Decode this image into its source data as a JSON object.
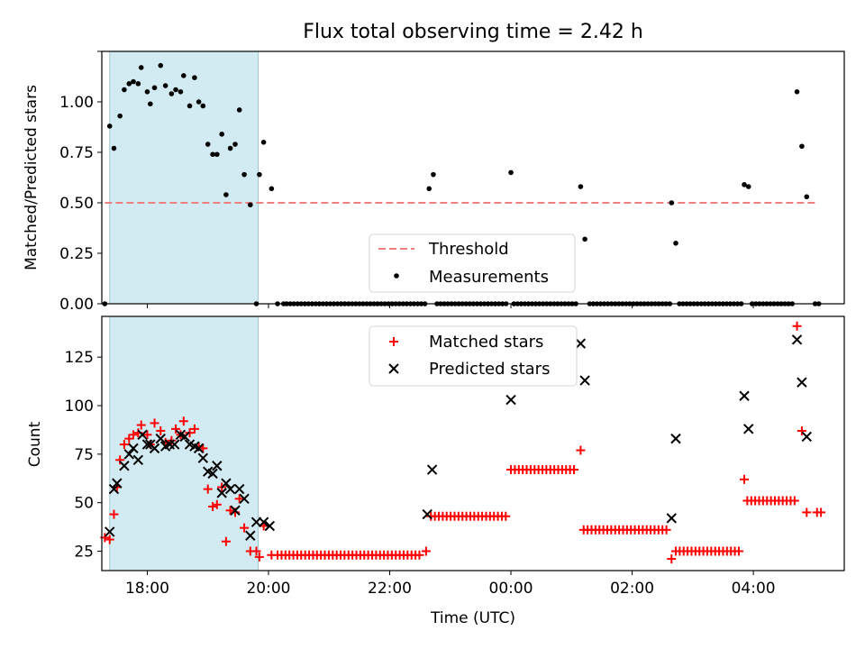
{
  "chart_data": [
    {
      "type": "scatter",
      "title": "Flux total observing time = 2.42 h",
      "xlabel": "",
      "ylabel": "Matched/Predicted stars",
      "xlim": [
        -0.75,
        11.5
      ],
      "ylim": [
        0,
        1.25
      ],
      "yticks": [
        0.0,
        0.25,
        0.5,
        0.75,
        1.0,
        1.25
      ],
      "ytick_labels": [
        "0.00",
        "0.25",
        "0.50",
        "0.75",
        "1.00",
        ""
      ],
      "xticks": [
        0,
        2,
        4,
        6,
        8,
        10
      ],
      "xtick_labels": [
        "",
        "",
        "",
        "",
        "",
        ""
      ],
      "shaded_span": {
        "x0": -0.62,
        "x1": 1.83,
        "color": "#add8e6"
      },
      "threshold": {
        "name": "Threshold",
        "y": 0.5,
        "x0": -0.7,
        "x1": 11.05,
        "color": "#f07f7f"
      },
      "legend": {
        "position": "lower-center",
        "entries": [
          "Threshold",
          "Measurements"
        ]
      },
      "series": [
        {
          "name": "Measurements",
          "marker": "dot",
          "color": "#000000",
          "x": [
            -0.7,
            -0.62,
            -0.55,
            -0.45,
            -0.38,
            -0.3,
            -0.23,
            -0.15,
            -0.1,
            0.0,
            0.05,
            0.12,
            0.22,
            0.3,
            0.4,
            0.47,
            0.55,
            0.6,
            0.7,
            0.78,
            0.85,
            0.92,
            1.0,
            1.08,
            1.15,
            1.23,
            1.3,
            1.37,
            1.45,
            1.52,
            1.6,
            1.7,
            1.8,
            1.85,
            1.92,
            2.05,
            2.15,
            2.25
          ],
          "y": [
            0.0,
            0.88,
            0.77,
            0.93,
            1.06,
            1.09,
            1.1,
            1.09,
            1.17,
            1.05,
            0.99,
            1.07,
            1.18,
            1.08,
            1.04,
            1.06,
            1.05,
            1.13,
            0.98,
            1.12,
            1.0,
            0.98,
            0.79,
            0.74,
            0.74,
            0.84,
            0.54,
            0.77,
            0.79,
            0.96,
            0.64,
            0.49,
            0.0,
            0.64,
            0.8,
            0.57,
            0.0,
            0.0
          ]
        },
        {
          "name": "Measurements (later)",
          "marker": "dot",
          "color": "#000000",
          "x": [
            4.65,
            4.72,
            6.0,
            7.15,
            7.22,
            8.65,
            8.72,
            9.85,
            9.92,
            10.72,
            10.8,
            10.88,
            11.02,
            11.08
          ],
          "y": [
            0.57,
            0.64,
            0.65,
            0.58,
            0.32,
            0.5,
            0.3,
            0.59,
            0.58,
            1.05,
            0.78,
            0.53,
            0.0,
            0.0
          ]
        },
        {
          "name": "Zero-measurement bands",
          "marker": "zero-band",
          "color": "#000000",
          "bands": [
            [
              2.3,
              4.62
            ],
            [
              4.78,
              5.95
            ],
            [
              6.05,
              7.08
            ],
            [
              7.3,
              8.62
            ],
            [
              8.78,
              9.8
            ],
            [
              9.98,
              10.65
            ]
          ],
          "y": 0.0
        }
      ]
    },
    {
      "type": "scatter",
      "title": "",
      "xlabel": "Time (UTC)",
      "ylabel": "Count",
      "xlim": [
        -0.75,
        11.5
      ],
      "ylim": [
        15,
        146
      ],
      "yticks": [
        25,
        50,
        75,
        100,
        125
      ],
      "ytick_labels": [
        "25",
        "50",
        "75",
        "100",
        "125"
      ],
      "xticks": [
        0,
        2,
        4,
        6,
        8,
        10
      ],
      "xtick_labels": [
        "18:00",
        "20:00",
        "22:00",
        "00:00",
        "02:00",
        "04:00"
      ],
      "shaded_span": {
        "x0": -0.62,
        "x1": 1.83,
        "color": "#add8e6"
      },
      "legend": {
        "position": "top-center",
        "entries": [
          "Matched stars",
          "Predicted stars"
        ]
      },
      "series": [
        {
          "name": "Matched stars",
          "marker": "plus",
          "color": "#ff0000",
          "x": [
            -0.7,
            -0.62,
            -0.55,
            -0.5,
            -0.45,
            -0.38,
            -0.3,
            -0.23,
            -0.15,
            -0.1,
            0.0,
            0.05,
            0.12,
            0.22,
            0.3,
            0.4,
            0.47,
            0.55,
            0.6,
            0.7,
            0.78,
            0.85,
            0.92,
            1.0,
            1.08,
            1.15,
            1.23,
            1.3,
            1.37,
            1.45,
            1.52,
            1.6,
            1.7,
            1.8,
            1.85,
            1.92,
            2.05
          ],
          "y": [
            32,
            31,
            44,
            58,
            72,
            80,
            83,
            85,
            86,
            90,
            85,
            80,
            91,
            87,
            81,
            82,
            88,
            85,
            92,
            86,
            88,
            79,
            78,
            57,
            48,
            49,
            58,
            30,
            46,
            45,
            52,
            37,
            25,
            25,
            22,
            38,
            23
          ]
        },
        {
          "name": "Matched stars (plateaus)",
          "marker": "plus-band",
          "color": "#ff0000",
          "bands": [
            {
              "x0": 2.15,
              "x1": 4.5,
              "y": 23
            },
            {
              "x0": 4.68,
              "x1": 5.92,
              "y": 43
            },
            {
              "x0": 6.0,
              "x1": 7.1,
              "y": 67
            },
            {
              "x0": 7.2,
              "x1": 8.6,
              "y": 36
            },
            {
              "x0": 8.72,
              "x1": 9.8,
              "y": 25
            },
            {
              "x0": 9.9,
              "x1": 10.68,
              "y": 51
            },
            {
              "x0": 11.05,
              "x1": 11.12,
              "y": 45
            }
          ],
          "points_x": [
            4.6,
            7.15,
            8.65,
            9.85,
            10.72,
            10.8,
            10.88
          ],
          "points_y": [
            25,
            77,
            21,
            62,
            141,
            87,
            45
          ]
        },
        {
          "name": "Predicted stars",
          "marker": "x",
          "color": "#000000",
          "x": [
            -0.62,
            -0.55,
            -0.5,
            -0.38,
            -0.3,
            -0.23,
            -0.15,
            -0.08,
            0.0,
            0.05,
            0.12,
            0.22,
            0.3,
            0.37,
            0.45,
            0.55,
            0.62,
            0.7,
            0.78,
            0.85,
            0.92,
            1.0,
            1.08,
            1.15,
            1.23,
            1.3,
            1.37,
            1.45,
            1.52,
            1.6,
            1.7,
            1.8,
            1.92,
            2.02,
            4.62,
            4.7,
            6.0,
            7.15,
            7.22,
            8.65,
            8.72,
            9.85,
            9.92,
            10.72,
            10.8,
            10.88
          ],
          "y": [
            35,
            57,
            60,
            69,
            75,
            78,
            72,
            85,
            80,
            80,
            78,
            83,
            79,
            80,
            80,
            85,
            84,
            80,
            79,
            78,
            73,
            66,
            65,
            69,
            55,
            60,
            57,
            46,
            57,
            52,
            33,
            40,
            40,
            38,
            44,
            67,
            103,
            132,
            113,
            42,
            83,
            105,
            88,
            134,
            112,
            84
          ]
        }
      ]
    }
  ]
}
